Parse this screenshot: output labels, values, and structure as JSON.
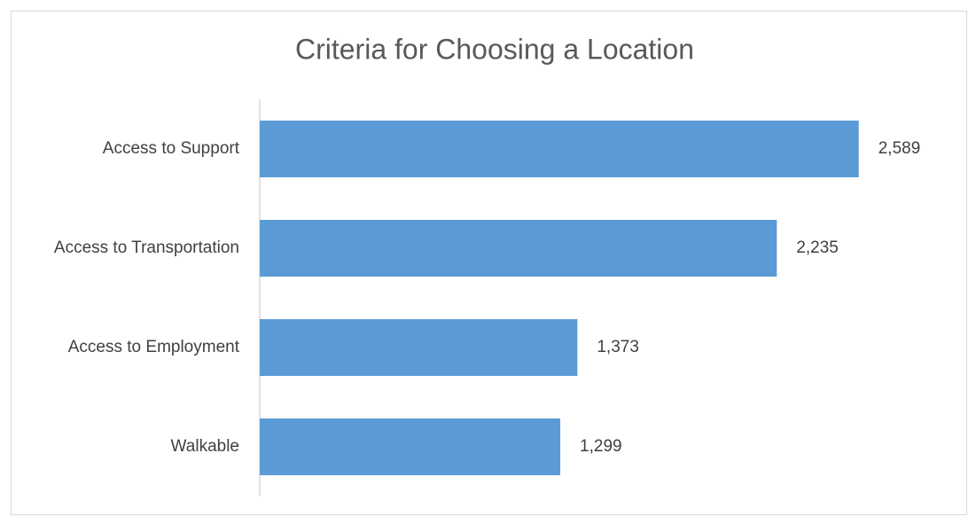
{
  "chart_data": {
    "type": "bar",
    "orientation": "horizontal",
    "title": "Criteria for Choosing a Location",
    "categories": [
      "Access to Support",
      "Access to Transportation",
      "Access to Employment",
      "Walkable"
    ],
    "values": [
      2589,
      2235,
      1373,
      1299
    ],
    "value_labels": [
      "2,589",
      "2,235",
      "1,373",
      "1,299"
    ],
    "color": "#5b9bd5",
    "xlim": [
      0,
      3000
    ]
  }
}
